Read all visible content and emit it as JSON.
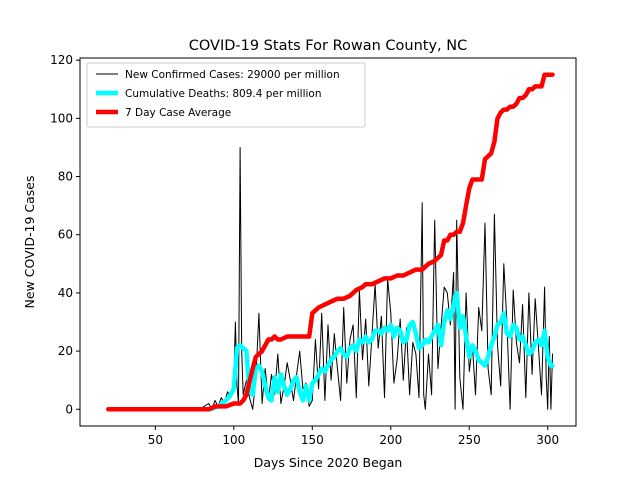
{
  "chart_data": {
    "type": "line",
    "title": "COVID-19 Stats For Rowan County, NC",
    "xlabel": "Days Since 2020 Began",
    "ylabel": "New COVID-19 Cases",
    "xlim": [
      2,
      318
    ],
    "ylim": [
      -5.75,
      120.75
    ],
    "xticks": [
      50,
      100,
      150,
      200,
      250,
      300
    ],
    "yticks": [
      0,
      20,
      40,
      60,
      80,
      100,
      120
    ],
    "grid": false,
    "legend_position": "upper-left",
    "series": [
      {
        "name": "New Confirmed Cases: 29000 per million",
        "color": "#000000",
        "style": "thin",
        "x": [
          20,
          30,
          40,
          50,
          60,
          70,
          78,
          84,
          86,
          88,
          90,
          92,
          94,
          96,
          98,
          100,
          101,
          102,
          103,
          104,
          105,
          106,
          108,
          110,
          112,
          114,
          116,
          118,
          120,
          122,
          124,
          126,
          128,
          130,
          132,
          134,
          136,
          138,
          140,
          142,
          144,
          146,
          148,
          150,
          152,
          154,
          156,
          158,
          160,
          162,
          164,
          166,
          168,
          170,
          172,
          174,
          176,
          178,
          180,
          182,
          184,
          186,
          188,
          190,
          192,
          194,
          196,
          198,
          200,
          202,
          204,
          206,
          208,
          210,
          212,
          214,
          216,
          218,
          220,
          221,
          222,
          224,
          226,
          228,
          230,
          232,
          234,
          236,
          238,
          240,
          241,
          242,
          244,
          246,
          248,
          250,
          252,
          254,
          256,
          258,
          260,
          262,
          264,
          266,
          268,
          270,
          272,
          274,
          276,
          278,
          280,
          282,
          284,
          286,
          288,
          290,
          292,
          294,
          296,
          298,
          299,
          300,
          301,
          302,
          303
        ],
        "y": [
          0,
          0,
          0,
          0,
          0,
          0,
          0,
          2,
          0,
          3,
          1,
          4,
          2,
          6,
          4,
          10,
          30,
          8,
          2,
          90,
          20,
          5,
          10,
          4,
          0,
          10,
          33,
          2,
          14,
          3,
          12,
          5,
          19,
          2,
          8,
          16,
          10,
          3,
          12,
          20,
          7,
          9,
          1,
          3,
          24,
          7,
          33,
          3,
          29,
          10,
          26,
          14,
          3,
          35,
          9,
          24,
          29,
          4,
          41,
          17,
          31,
          8,
          25,
          43,
          21,
          32,
          4,
          45,
          33,
          9,
          17,
          31,
          10,
          28,
          5,
          23,
          19,
          4,
          71,
          5,
          0,
          19,
          5,
          65,
          14,
          28,
          42,
          40,
          29,
          47,
          0,
          65,
          11,
          0,
          40,
          13,
          22,
          5,
          35,
          27,
          64,
          14,
          5,
          67,
          22,
          8,
          50,
          30,
          0,
          41,
          23,
          16,
          36,
          4,
          40,
          12,
          38,
          22,
          5,
          42,
          11,
          0,
          25,
          0,
          19
        ]
      },
      {
        "name": "Cumulative Deaths: 809.4 per million",
        "color": "#00ffff",
        "style": "thick",
        "x": [
          85,
          90,
          95,
          98,
          100,
          102,
          104,
          106,
          108,
          110,
          112,
          114,
          116,
          118,
          120,
          122,
          124,
          126,
          128,
          130,
          132,
          134,
          136,
          138,
          140,
          142,
          144,
          146,
          148,
          150,
          152,
          154,
          156,
          158,
          160,
          162,
          164,
          166,
          168,
          170,
          172,
          174,
          176,
          178,
          180,
          182,
          184,
          186,
          188,
          190,
          192,
          194,
          196,
          198,
          200,
          202,
          204,
          206,
          208,
          210,
          212,
          214,
          216,
          218,
          220,
          222,
          224,
          226,
          228,
          230,
          232,
          234,
          236,
          238,
          240,
          242,
          244,
          246,
          248,
          250,
          252,
          254,
          256,
          258,
          260,
          262,
          264,
          266,
          268,
          270,
          272,
          274,
          276,
          278,
          280,
          282,
          284,
          286,
          288,
          290,
          292,
          294,
          296,
          298,
          300,
          302,
          303
        ],
        "y": [
          0,
          1,
          3,
          5,
          7,
          21,
          22,
          21,
          20,
          6,
          5,
          14,
          15,
          13,
          8,
          4,
          3,
          11,
          6,
          12,
          8,
          5,
          7,
          10,
          11,
          6,
          3,
          8,
          3,
          9,
          10,
          12,
          14,
          13,
          15,
          17,
          18,
          20,
          21,
          19,
          18,
          21,
          22,
          20,
          24,
          23,
          25,
          23,
          24,
          27,
          27,
          26,
          28,
          27,
          29,
          25,
          28,
          27,
          23,
          24,
          29,
          30,
          26,
          21,
          22,
          24,
          23,
          25,
          27,
          29,
          22,
          30,
          34,
          31,
          36,
          40,
          28,
          32,
          25,
          18,
          22,
          20,
          17,
          16,
          15,
          18,
          22,
          25,
          29,
          30,
          33,
          26,
          25,
          29,
          28,
          24,
          25,
          22,
          19,
          20,
          23,
          24,
          22,
          27,
          18,
          15,
          15
        ]
      },
      {
        "name": "7 Day Case Average",
        "color": "#ff0000",
        "style": "thick",
        "x": [
          20,
          84,
          88,
          90,
          95,
          100,
          102,
          104,
          106,
          108,
          112,
          114,
          118,
          120,
          122,
          124,
          126,
          128,
          130,
          134,
          135,
          137,
          140,
          142,
          145,
          148,
          150,
          152,
          154,
          158,
          162,
          166,
          170,
          174,
          178,
          182,
          184,
          188,
          192,
          196,
          200,
          204,
          208,
          212,
          216,
          220,
          224,
          228,
          232,
          234,
          236,
          238,
          240,
          242,
          244,
          246,
          248,
          250,
          252,
          256,
          258,
          260,
          262,
          264,
          266,
          268,
          270,
          272,
          274,
          276,
          278,
          280,
          282,
          284,
          286,
          288,
          290,
          292,
          294,
          296,
          298,
          300,
          302,
          303
        ],
        "y": [
          0,
          0,
          1,
          1,
          1,
          2,
          2,
          2,
          3,
          5,
          14,
          18,
          20,
          22,
          24,
          24,
          25,
          24,
          24,
          25,
          25,
          25,
          25,
          25,
          25,
          25,
          33,
          34,
          35,
          36,
          37,
          38,
          38,
          39,
          41,
          42,
          43,
          43,
          44,
          45,
          45,
          46,
          46,
          47,
          48,
          48,
          50,
          51,
          53,
          58,
          58,
          60,
          60,
          61,
          61,
          64,
          70,
          76,
          79,
          79,
          79,
          86,
          87,
          88,
          92,
          100,
          102,
          103,
          103,
          104,
          104,
          105,
          107,
          107,
          108,
          110,
          110,
          111,
          111,
          111,
          115,
          115,
          115,
          115
        ]
      }
    ]
  }
}
